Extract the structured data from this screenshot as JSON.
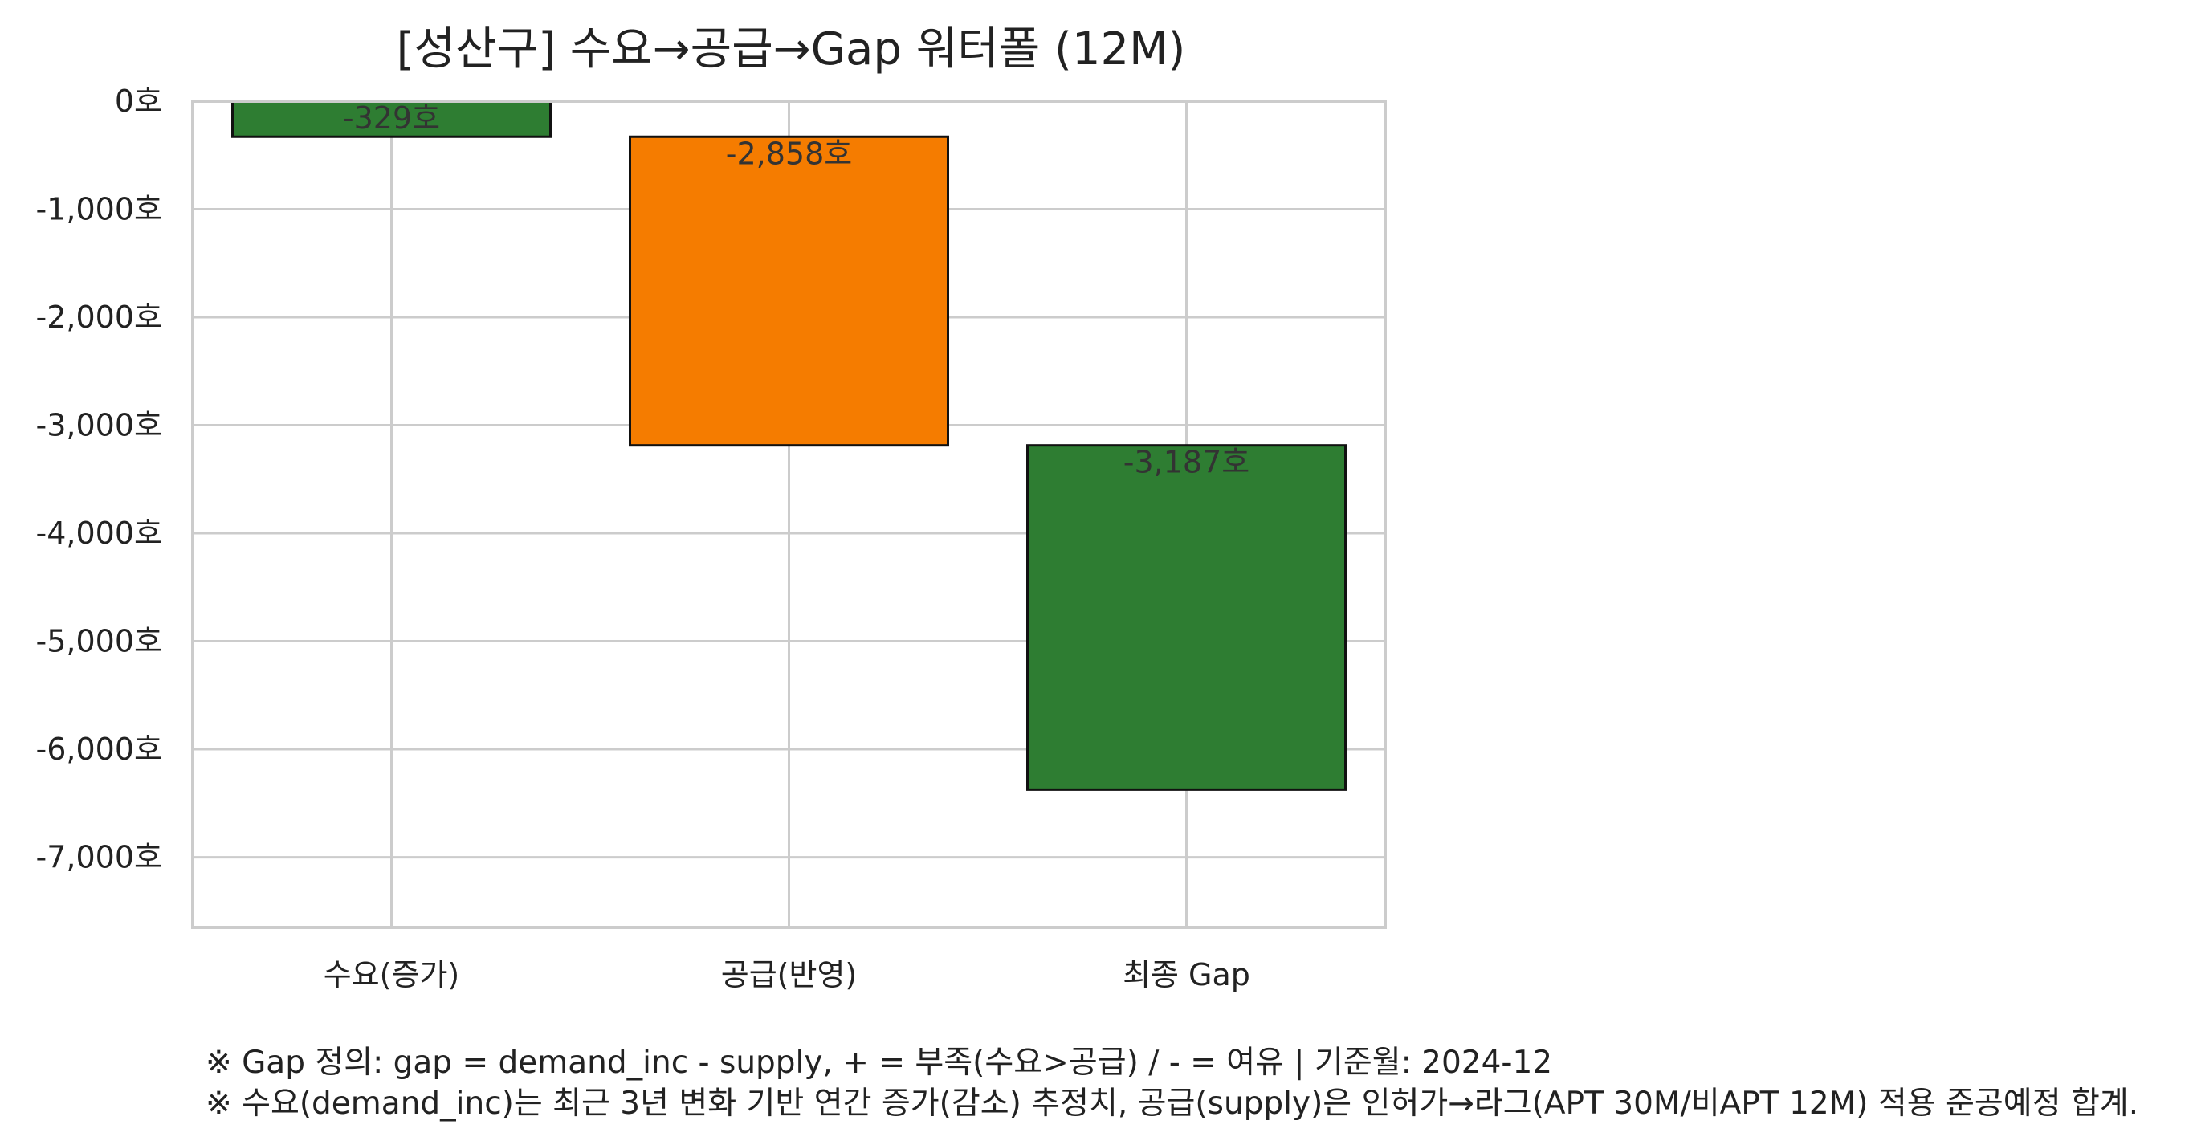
{
  "chart_data": {
    "type": "bar",
    "title": "[성산구] 수요→공급→Gap 워터폴 (12M)",
    "categories": [
      "수요(증가)",
      "공급(반영)",
      "최종 Gap"
    ],
    "bars": [
      {
        "label": "-329호",
        "start": 0,
        "end": -329,
        "color": "#2e7d32"
      },
      {
        "label": "-2,858호",
        "start": -329,
        "end": -3187,
        "color": "#f57c00"
      },
      {
        "label": "-3,187호",
        "start": -3187,
        "end": -6374,
        "color": "#2e7d32"
      }
    ],
    "yticks": [
      0,
      -1000,
      -2000,
      -3000,
      -4000,
      -5000,
      -6000,
      -7000
    ],
    "ytick_labels": [
      "0호",
      "-1,000호",
      "-2,000호",
      "-3,000호",
      "-4,000호",
      "-5,000호",
      "-6,000호",
      "-7,000호"
    ],
    "ylim": [
      -7650,
      0
    ],
    "grid": true,
    "xlabel": "",
    "ylabel": ""
  },
  "notes": {
    "line1": "※ Gap 정의: gap = demand_inc - supply, + = 부족(수요>공급) / - = 여유 | 기준월: 2024-12",
    "line2": "※ 수요(demand_inc)는 최근 3년 변화 기반 연간 증가(감소) 추정치, 공급(supply)은 인허가→라그(APT 30M/비APT 12M) 적용 준공예정 합계."
  }
}
